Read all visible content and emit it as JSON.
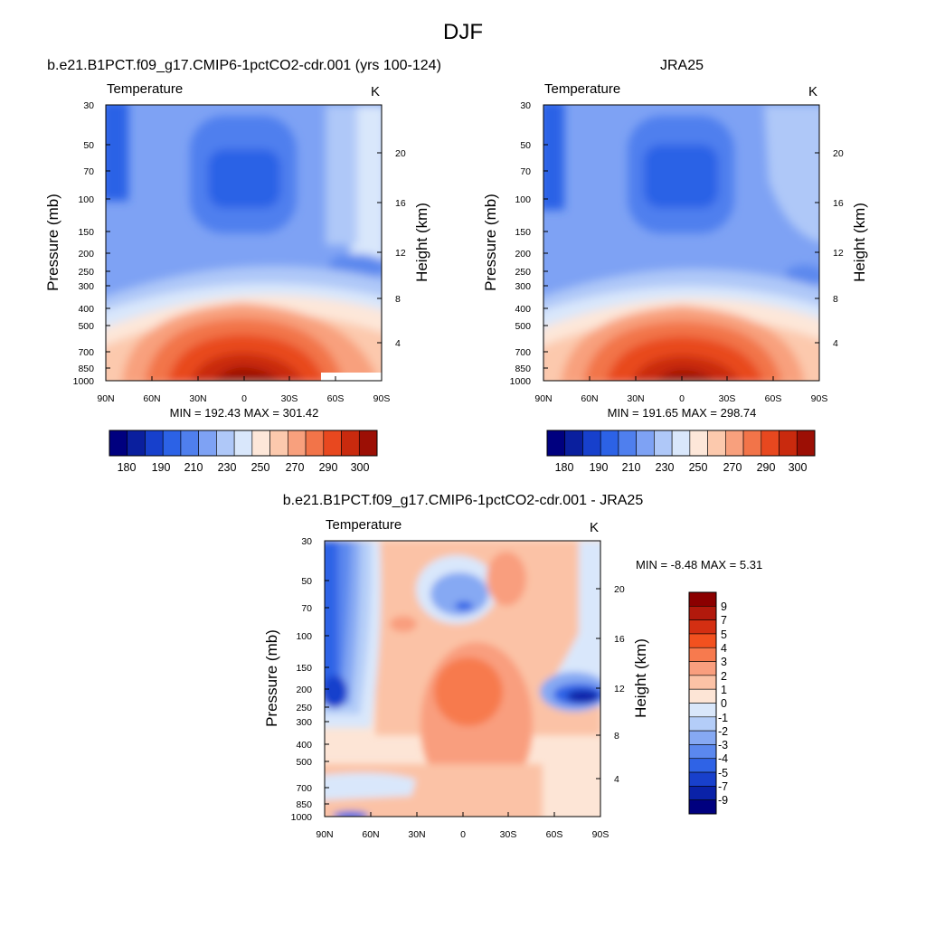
{
  "figure": {
    "title": "DJF"
  },
  "chart_data": [
    {
      "type": "heatmap",
      "title": "b.e21.B1PCT.f09_g17.CMIP6-1pctCO2-cdr.001 (yrs 100-124)",
      "variable": "Temperature",
      "units": "K",
      "xlabel": "",
      "ylabel": "Pressure (mb)",
      "ylabel_right": "Height (km)",
      "x_ticks": [
        "90N",
        "60N",
        "30N",
        "0",
        "30S",
        "60S",
        "90S"
      ],
      "y_ticks": [
        "30",
        "50",
        "70",
        "100",
        "150",
        "200",
        "250",
        "300",
        "400",
        "500",
        "700",
        "850",
        "1000"
      ],
      "y_ticks_right": [
        "20",
        "16",
        "12",
        "8",
        "4"
      ],
      "min": 192.43,
      "max": 301.42,
      "stats_label": "MIN = 192.43   MAX = 301.42",
      "colorbar_labels": [
        "180",
        "190",
        "210",
        "230",
        "250",
        "270",
        "290",
        "300"
      ],
      "colorbar_colors": [
        "#00007f",
        "#0a1f9e",
        "#1740cc",
        "#2c62e6",
        "#4f7fee",
        "#7ea2f4",
        "#afc8f8",
        "#d9e7fb",
        "#fde7d9",
        "#fcc9ad",
        "#f8a07d",
        "#f27449",
        "#e8481f",
        "#c92a0e",
        "#9c0f05"
      ]
    },
    {
      "type": "heatmap",
      "title": "JRA25",
      "variable": "Temperature",
      "units": "K",
      "xlabel": "",
      "ylabel": "Pressure (mb)",
      "ylabel_right": "Height (km)",
      "x_ticks": [
        "90N",
        "60N",
        "30N",
        "0",
        "30S",
        "60S",
        "90S"
      ],
      "y_ticks": [
        "30",
        "50",
        "70",
        "100",
        "150",
        "200",
        "250",
        "300",
        "400",
        "500",
        "700",
        "850",
        "1000"
      ],
      "y_ticks_right": [
        "20",
        "16",
        "12",
        "8",
        "4"
      ],
      "min": 191.65,
      "max": 298.74,
      "stats_label": "MIN = 191.65   MAX = 298.74",
      "colorbar_labels": [
        "180",
        "190",
        "210",
        "230",
        "250",
        "270",
        "290",
        "300"
      ],
      "colorbar_colors": [
        "#00007f",
        "#0a1f9e",
        "#1740cc",
        "#2c62e6",
        "#4f7fee",
        "#7ea2f4",
        "#afc8f8",
        "#d9e7fb",
        "#fde7d9",
        "#fcc9ad",
        "#f8a07d",
        "#f27449",
        "#e8481f",
        "#c92a0e",
        "#9c0f05"
      ]
    },
    {
      "type": "heatmap",
      "title": "b.e21.B1PCT.f09_g17.CMIP6-1pctCO2-cdr.001 - JRA25",
      "variable": "Temperature",
      "units": "K",
      "xlabel": "",
      "ylabel": "Pressure (mb)",
      "ylabel_right": "Height (km)",
      "x_ticks": [
        "90N",
        "60N",
        "30N",
        "0",
        "30S",
        "60S",
        "90S"
      ],
      "y_ticks": [
        "30",
        "50",
        "70",
        "100",
        "150",
        "200",
        "250",
        "300",
        "400",
        "500",
        "700",
        "850",
        "1000"
      ],
      "y_ticks_right": [
        "20",
        "16",
        "12",
        "8",
        "4"
      ],
      "min": -8.48,
      "max": 5.31,
      "stats_label": "MIN =  -8.48  MAX =   5.31",
      "colorbar_labels": [
        "9",
        "7",
        "5",
        "4",
        "3",
        "2",
        "1",
        "0",
        "-1",
        "-2",
        "-3",
        "-4",
        "-5",
        "-7",
        "-9"
      ],
      "colorbar_colors": [
        "#8b0000",
        "#b2190c",
        "#d42f12",
        "#f2511f",
        "#f77a4e",
        "#f99e7e",
        "#fbc2a6",
        "#fde5d6",
        "#d9e7fb",
        "#b4cdf8",
        "#86a9f3",
        "#5b88ee",
        "#2f63e6",
        "#1840cc",
        "#0a22a8",
        "#00007f"
      ]
    }
  ]
}
